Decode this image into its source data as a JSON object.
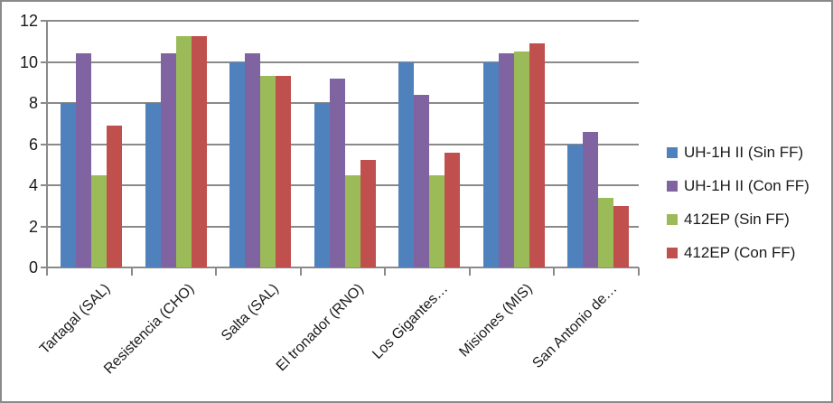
{
  "chart_data": {
    "type": "bar",
    "title": "",
    "xlabel": "",
    "ylabel": "",
    "categories": [
      "Tartagal (SAL)",
      "Resistencia (CHO)",
      "Salta (SAL)",
      "El tronador (RNO)",
      "Los Gigantes…",
      "Misiones (MIS)",
      "San Antonio de…"
    ],
    "series": [
      {
        "name": "UH-1H II (Sin FF)",
        "color": "#4F81BD",
        "values": [
          8,
          8,
          10,
          8,
          10,
          10,
          6
        ]
      },
      {
        "name": "UH-1H II (Con FF)",
        "color": "#8064A2",
        "values": [
          10.4,
          10.4,
          10.4,
          9.2,
          8.4,
          10.4,
          6.6
        ]
      },
      {
        "name": "412EP (Sin FF)",
        "color": "#9BBB59",
        "values": [
          4.5,
          11.25,
          9.3,
          4.5,
          4.5,
          10.5,
          3.4
        ]
      },
      {
        "name": "412EP (Con FF)",
        "color": "#C0504D",
        "values": [
          6.9,
          11.25,
          9.3,
          5.25,
          5.6,
          10.9,
          3.0
        ]
      }
    ],
    "ylim": [
      0,
      12
    ],
    "yticks": [
      0,
      2,
      4,
      6,
      8,
      10,
      12
    ],
    "grid": true,
    "legend_position": "right"
  },
  "colors": {
    "axis": "#8A8A8A",
    "grid": "#8A8A8A",
    "border": "#8A8A8A",
    "text": "#1A1A1A",
    "background": "#FFFFFF"
  }
}
